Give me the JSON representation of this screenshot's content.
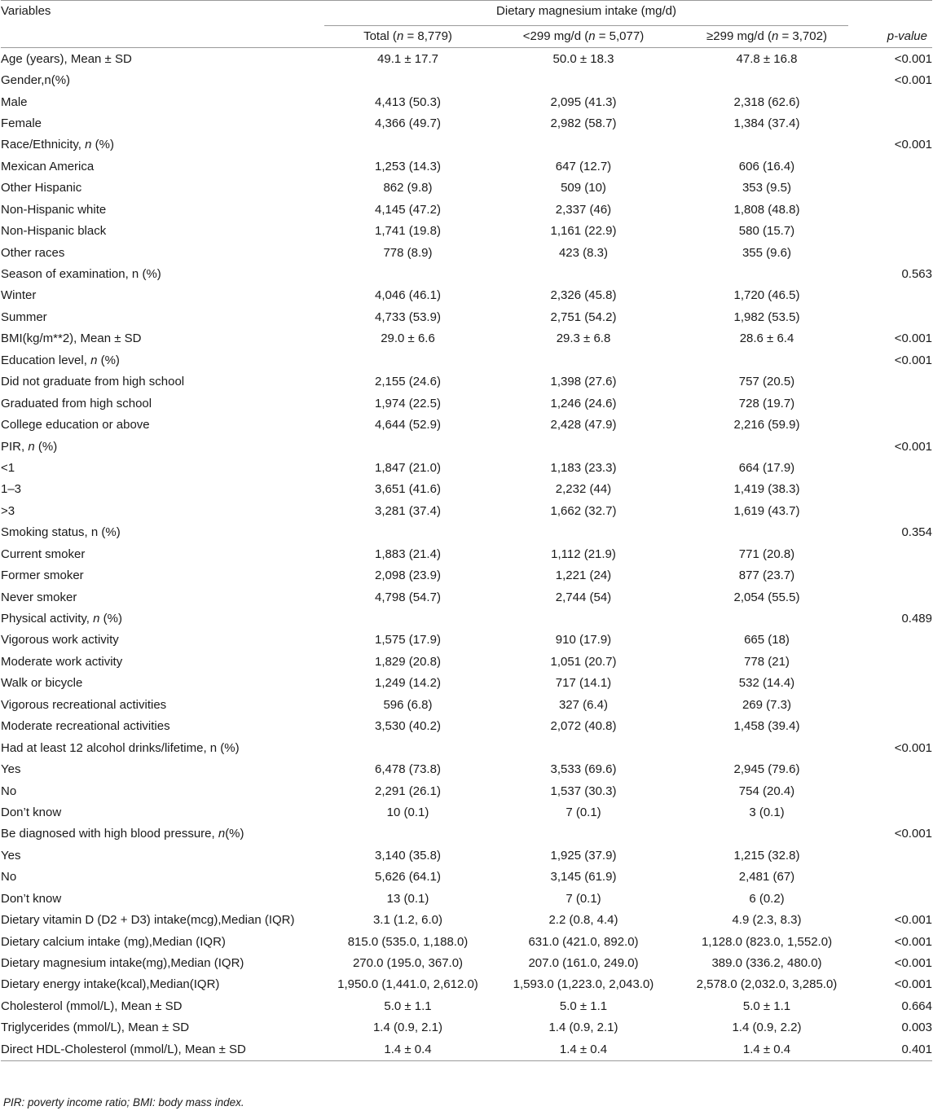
{
  "header": {
    "variables_label": "Variables",
    "group_label": "Dietary magnesium intake (mg/d)",
    "p_value_label": "p-value",
    "columns": [
      {
        "prefix": "Total (",
        "n_label": "n",
        "suffix": " = 8,779)"
      },
      {
        "prefix": "<299 mg/d (",
        "n_label": "n",
        "suffix": " = 5,077)"
      },
      {
        "prefix": "≥299 mg/d (",
        "n_label": "n",
        "suffix": " = 3,702)"
      }
    ]
  },
  "rows": [
    {
      "label": "Age (years), Mean ± SD",
      "indent": false,
      "total": "49.1 ± 17.7",
      "low": "50.0 ± 18.3",
      "high": "47.8 ± 16.8",
      "p": "<0.001"
    },
    {
      "label": "Gender,n(%)",
      "indent": false,
      "total": "",
      "low": "",
      "high": "",
      "p": "<0.001"
    },
    {
      "label": "Male",
      "indent": true,
      "total": "4,413 (50.3)",
      "low": "2,095 (41.3)",
      "high": "2,318 (62.6)",
      "p": ""
    },
    {
      "label": "Female",
      "indent": true,
      "total": "4,366 (49.7)",
      "low": "2,982 (58.7)",
      "high": "1,384 (37.4)",
      "p": ""
    },
    {
      "label": "Race/Ethnicity, n (%)",
      "indent": false,
      "total": "",
      "low": "",
      "high": "",
      "p": "<0.001"
    },
    {
      "label": "Mexican America",
      "indent": true,
      "total": "1,253 (14.3)",
      "low": "647 (12.7)",
      "high": "606 (16.4)",
      "p": ""
    },
    {
      "label": "Other Hispanic",
      "indent": true,
      "total": "862 (9.8)",
      "low": "509 (10)",
      "high": "353 (9.5)",
      "p": ""
    },
    {
      "label": "Non-Hispanic white",
      "indent": true,
      "total": "4,145 (47.2)",
      "low": "2,337 (46)",
      "high": "1,808 (48.8)",
      "p": ""
    },
    {
      "label": "Non-Hispanic black",
      "indent": true,
      "total": "1,741 (19.8)",
      "low": "1,161 (22.9)",
      "high": "580 (15.7)",
      "p": ""
    },
    {
      "label": "Other races",
      "indent": true,
      "total": "778 (8.9)",
      "low": "423 (8.3)",
      "high": "355 (9.6)",
      "p": ""
    },
    {
      "label": "Season of examination, n (%)",
      "indent": false,
      "total": "",
      "low": "",
      "high": "",
      "p": "0.563"
    },
    {
      "label": "Winter",
      "indent": true,
      "total": "4,046 (46.1)",
      "low": "2,326 (45.8)",
      "high": "1,720 (46.5)",
      "p": ""
    },
    {
      "label": "Summer",
      "indent": true,
      "total": "4,733 (53.9)",
      "low": "2,751 (54.2)",
      "high": "1,982 (53.5)",
      "p": ""
    },
    {
      "label": "BMI(kg/m**2), Mean ± SD",
      "indent": false,
      "total": "29.0 ± 6.6",
      "low": "29.3 ± 6.8",
      "high": "28.6 ± 6.4",
      "p": "<0.001"
    },
    {
      "label": "Education level, n (%)",
      "indent": false,
      "total": "",
      "low": "",
      "high": "",
      "p": "<0.001"
    },
    {
      "label": "Did not graduate from high school",
      "indent": true,
      "total": "2,155 (24.6)",
      "low": "1,398 (27.6)",
      "high": "757 (20.5)",
      "p": ""
    },
    {
      "label": "Graduated from high school",
      "indent": true,
      "total": "1,974 (22.5)",
      "low": "1,246 (24.6)",
      "high": "728 (19.7)",
      "p": ""
    },
    {
      "label": "College education or above",
      "indent": true,
      "total": "4,644 (52.9)",
      "low": "2,428 (47.9)",
      "high": "2,216 (59.9)",
      "p": ""
    },
    {
      "label": "PIR, n (%)",
      "indent": false,
      "total": "",
      "low": "",
      "high": "",
      "p": "<0.001"
    },
    {
      "label": "<1",
      "indent": true,
      "total": "1,847 (21.0)",
      "low": "1,183 (23.3)",
      "high": "664 (17.9)",
      "p": ""
    },
    {
      "label": "1–3",
      "indent": true,
      "total": "3,651 (41.6)",
      "low": "2,232 (44)",
      "high": "1,419 (38.3)",
      "p": ""
    },
    {
      "label": ">3",
      "indent": true,
      "total": "3,281 (37.4)",
      "low": "1,662 (32.7)",
      "high": "1,619 (43.7)",
      "p": ""
    },
    {
      "label": "Smoking status, n (%)",
      "indent": false,
      "total": "",
      "low": "",
      "high": "",
      "p": "0.354"
    },
    {
      "label": "Current smoker",
      "indent": true,
      "total": "1,883 (21.4)",
      "low": "1,112 (21.9)",
      "high": "771 (20.8)",
      "p": ""
    },
    {
      "label": "Former smoker",
      "indent": true,
      "total": "2,098 (23.9)",
      "low": "1,221 (24)",
      "high": "877 (23.7)",
      "p": ""
    },
    {
      "label": "Never smoker",
      "indent": true,
      "total": "4,798 (54.7)",
      "low": "2,744 (54)",
      "high": "2,054 (55.5)",
      "p": ""
    },
    {
      "label": "Physical activity, n (%)",
      "indent": false,
      "total": "",
      "low": "",
      "high": "",
      "p": "0.489"
    },
    {
      "label": "Vigorous work activity",
      "indent": true,
      "total": "1,575 (17.9)",
      "low": "910 (17.9)",
      "high": "665 (18)",
      "p": ""
    },
    {
      "label": "Moderate work activity",
      "indent": true,
      "total": "1,829 (20.8)",
      "low": "1,051 (20.7)",
      "high": "778 (21)",
      "p": ""
    },
    {
      "label": "Walk or bicycle",
      "indent": true,
      "total": "1,249 (14.2)",
      "low": "717 (14.1)",
      "high": "532 (14.4)",
      "p": ""
    },
    {
      "label": "Vigorous recreational activities",
      "indent": true,
      "total": "596 (6.8)",
      "low": "327 (6.4)",
      "high": "269 (7.3)",
      "p": ""
    },
    {
      "label": "Moderate recreational activities",
      "indent": true,
      "total": "3,530 (40.2)",
      "low": "2,072 (40.8)",
      "high": "1,458 (39.4)",
      "p": ""
    },
    {
      "label": "Had at least 12 alcohol drinks/lifetime, n (%)",
      "indent": false,
      "total": "",
      "low": "",
      "high": "",
      "p": "<0.001"
    },
    {
      "label": "Yes",
      "indent": true,
      "total": "6,478 (73.8)",
      "low": "3,533 (69.6)",
      "high": "2,945 (79.6)",
      "p": ""
    },
    {
      "label": "No",
      "indent": true,
      "total": "2,291 (26.1)",
      "low": "1,537 (30.3)",
      "high": "754 (20.4)",
      "p": ""
    },
    {
      "label": "Don’t know",
      "indent": true,
      "total": "10 (0.1)",
      "low": "7 (0.1)",
      "high": "3 (0.1)",
      "p": ""
    },
    {
      "label": "Be diagnosed with high blood pressure, n(%)",
      "indent": false,
      "total": "",
      "low": "",
      "high": "",
      "p": "<0.001"
    },
    {
      "label": "Yes",
      "indent": true,
      "total": "3,140 (35.8)",
      "low": "1,925 (37.9)",
      "high": "1,215 (32.8)",
      "p": ""
    },
    {
      "label": "No",
      "indent": true,
      "total": "5,626 (64.1)",
      "low": "3,145 (61.9)",
      "high": "2,481 (67)",
      "p": ""
    },
    {
      "label": "Don’t know",
      "indent": true,
      "total": "13 (0.1)",
      "low": "7 (0.1)",
      "high": "6 (0.2)",
      "p": ""
    },
    {
      "label": "Dietary vitamin D (D2 + D3) intake(mcg),Median (IQR)",
      "indent": false,
      "total": "3.1 (1.2, 6.0)",
      "low": "2.2 (0.8, 4.4)",
      "high": "4.9 (2.3, 8.3)",
      "p": "<0.001"
    },
    {
      "label": "Dietary calcium intake (mg),Median (IQR)",
      "indent": false,
      "total": "815.0 (535.0, 1,188.0)",
      "low": "631.0 (421.0, 892.0)",
      "high": "1,128.0 (823.0, 1,552.0)",
      "p": "<0.001"
    },
    {
      "label": "Dietary magnesium intake(mg),Median (IQR)",
      "indent": false,
      "total": "270.0 (195.0, 367.0)",
      "low": "207.0 (161.0, 249.0)",
      "high": "389.0 (336.2, 480.0)",
      "p": "<0.001"
    },
    {
      "label": "Dietary energy intake(kcal),Median(IQR)",
      "indent": false,
      "total": "1,950.0 (1,441.0, 2,612.0)",
      "low": "1,593.0 (1,223.0, 2,043.0)",
      "high": "2,578.0 (2,032.0, 3,285.0)",
      "p": "<0.001"
    },
    {
      "label": "Cholesterol (mmol/L), Mean ± SD",
      "indent": false,
      "total": "5.0 ± 1.1",
      "low": "5.0 ± 1.1",
      "high": "5.0 ± 1.1",
      "p": "0.664"
    },
    {
      "label": "Triglycerides (mmol/L), Mean ± SD",
      "indent": false,
      "total": "1.4 (0.9, 2.1)",
      "low": "1.4 (0.9, 2.1)",
      "high": "1.4 (0.9, 2.2)",
      "p": "0.003"
    },
    {
      "label": "Direct HDL-Cholesterol (mmol/L), Mean ± SD",
      "indent": false,
      "total": "1.4 ± 0.4",
      "low": "1.4 ± 0.4",
      "high": "1.4 ± 0.4",
      "p": "0.401"
    }
  ],
  "footnote": "PIR: poverty income ratio; BMI: body mass index."
}
